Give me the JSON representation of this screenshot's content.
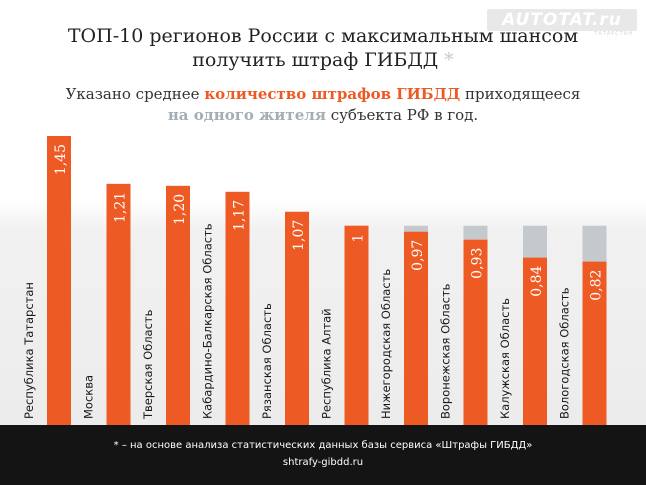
{
  "header": {
    "logo_text": "AUTOTAT.ru",
    "logo_subtext": "ТАТАРСТАН",
    "title_line1": "ТОП-10 регионов России с максимальным шансом",
    "title_line2": "получить штраф ГИБДД",
    "title_star": "*",
    "subtitle_part1": "Указано среднее ",
    "subtitle_highlight1": "количество штрафов ГИБДД",
    "subtitle_part2": " приходящееся",
    "subtitle_highlight2": "на одного жителя",
    "subtitle_part3": " субъекта РФ в год."
  },
  "footer": {
    "note": "* –   на основе анализа статистических данных базы сервиса «Штрафы ГИБДД»",
    "url": "shtrafy-gibdd.ru"
  },
  "colors": {
    "bar": "#ee5a23",
    "remainder": "#c3c9cc",
    "background": "#ffffff",
    "footer": "#141414"
  },
  "chart_data": {
    "type": "bar",
    "categories": [
      "Республика Татарстан",
      "Москва",
      "Тверская Область",
      "Кабардино-Балкарская Область",
      "Рязанская Область",
      "Республика Алтай",
      "Нижегородская Область",
      "Воронежская Область",
      "Калужская Область",
      "Вологодская Область"
    ],
    "values": [
      1.45,
      1.21,
      1.2,
      1.17,
      1.07,
      1,
      0.97,
      0.93,
      0.84,
      0.82
    ],
    "value_labels": [
      "1,45",
      "1,21",
      "1,20",
      "1,17",
      "1,07",
      "1",
      "0,97",
      "0,93",
      "0,84",
      "0,82"
    ],
    "reference_value": 1,
    "title": "ТОП-10 регионов России с максимальным шансом получить штраф ГИБДД",
    "xlabel": "",
    "ylabel": "",
    "ylim": [
      0,
      1.45
    ],
    "grid": false,
    "legend": "none"
  }
}
